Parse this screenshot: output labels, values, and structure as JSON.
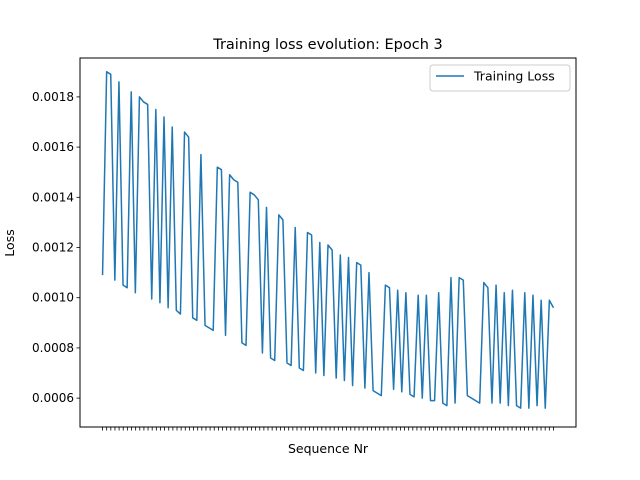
{
  "chart_data": {
    "type": "line",
    "title": "Training loss evolution: Epoch 3",
    "xlabel": "Sequence Nr",
    "ylabel": "Loss",
    "ylim": [
      0.000485,
      0.001955
    ],
    "yticks": [
      0.0006,
      0.0008,
      0.001,
      0.0012,
      0.0014,
      0.0016,
      0.0018
    ],
    "ytick_labels": [
      "0.0006",
      "0.0008",
      "0.0010",
      "0.0012",
      "0.0014",
      "0.0016",
      "0.0018"
    ],
    "x_tick_count": 110,
    "x_tick_labels_visible": false,
    "legend": {
      "placement": "upper right",
      "entries": [
        "Training Loss"
      ]
    },
    "grid": false,
    "colors": {
      "series": "#1f77b4"
    },
    "series": [
      {
        "name": "Training Loss",
        "x": [
          0,
          1,
          2,
          3,
          4,
          5,
          6,
          7,
          8,
          9,
          10,
          11,
          12,
          13,
          14,
          15,
          16,
          17,
          18,
          19,
          20,
          21,
          22,
          23,
          24,
          25,
          26,
          27,
          28,
          29,
          30,
          31,
          32,
          33,
          34,
          35,
          36,
          37,
          38,
          39,
          40,
          41,
          42,
          43,
          44,
          45,
          46,
          47,
          48,
          49,
          50,
          51,
          52,
          53,
          54,
          55,
          56,
          57,
          58,
          59,
          60,
          61,
          62,
          63,
          64,
          65,
          66,
          67,
          68,
          69,
          70,
          71,
          72,
          73,
          74,
          75,
          76,
          77,
          78,
          79,
          80,
          81,
          82,
          83,
          84,
          85,
          86,
          87,
          88,
          89,
          90,
          91,
          92,
          93,
          94,
          95,
          96,
          97,
          98,
          99,
          100,
          101,
          102,
          103,
          104,
          105,
          106,
          107,
          108,
          109,
          110
        ],
        "values": [
          0.00109,
          0.0019,
          0.00189,
          0.00107,
          0.00186,
          0.00105,
          0.00104,
          0.00182,
          0.00102,
          0.0018,
          0.00178,
          0.00177,
          0.000995,
          0.00175,
          0.00098,
          0.00172,
          0.00096,
          0.00168,
          0.00095,
          0.000935,
          0.00166,
          0.00164,
          0.00092,
          0.00091,
          0.00157,
          0.00089,
          0.00088,
          0.00087,
          0.00152,
          0.00151,
          0.00085,
          0.00149,
          0.00147,
          0.00146,
          0.00082,
          0.00081,
          0.00142,
          0.00141,
          0.00139,
          0.00078,
          0.00136,
          0.00076,
          0.00075,
          0.00133,
          0.00131,
          0.00074,
          0.00073,
          0.00128,
          0.00072,
          0.00071,
          0.00126,
          0.00125,
          0.0007,
          0.00122,
          0.00069,
          0.00121,
          0.00119,
          0.00068,
          0.00117,
          0.00067,
          0.00116,
          0.00065,
          0.00114,
          0.00113,
          0.00064,
          0.0011,
          0.00063,
          0.00062,
          0.00061,
          0.00105,
          0.00104,
          0.000635,
          0.00103,
          0.000625,
          0.00102,
          0.000615,
          0.000605,
          0.00101,
          0.0006,
          0.00101,
          0.00059,
          0.00059,
          0.00102,
          0.00058,
          0.00057,
          0.00108,
          0.00058,
          0.00108,
          0.00107,
          0.00061,
          0.0006,
          0.00059,
          0.00058,
          0.00106,
          0.00104,
          0.00058,
          0.00105,
          0.00058,
          0.00102,
          0.00057,
          0.00103,
          0.00057,
          0.00056,
          0.00102,
          0.00056,
          0.00101,
          0.00057,
          0.00099,
          0.00056,
          0.00099,
          0.00096
        ]
      }
    ]
  }
}
